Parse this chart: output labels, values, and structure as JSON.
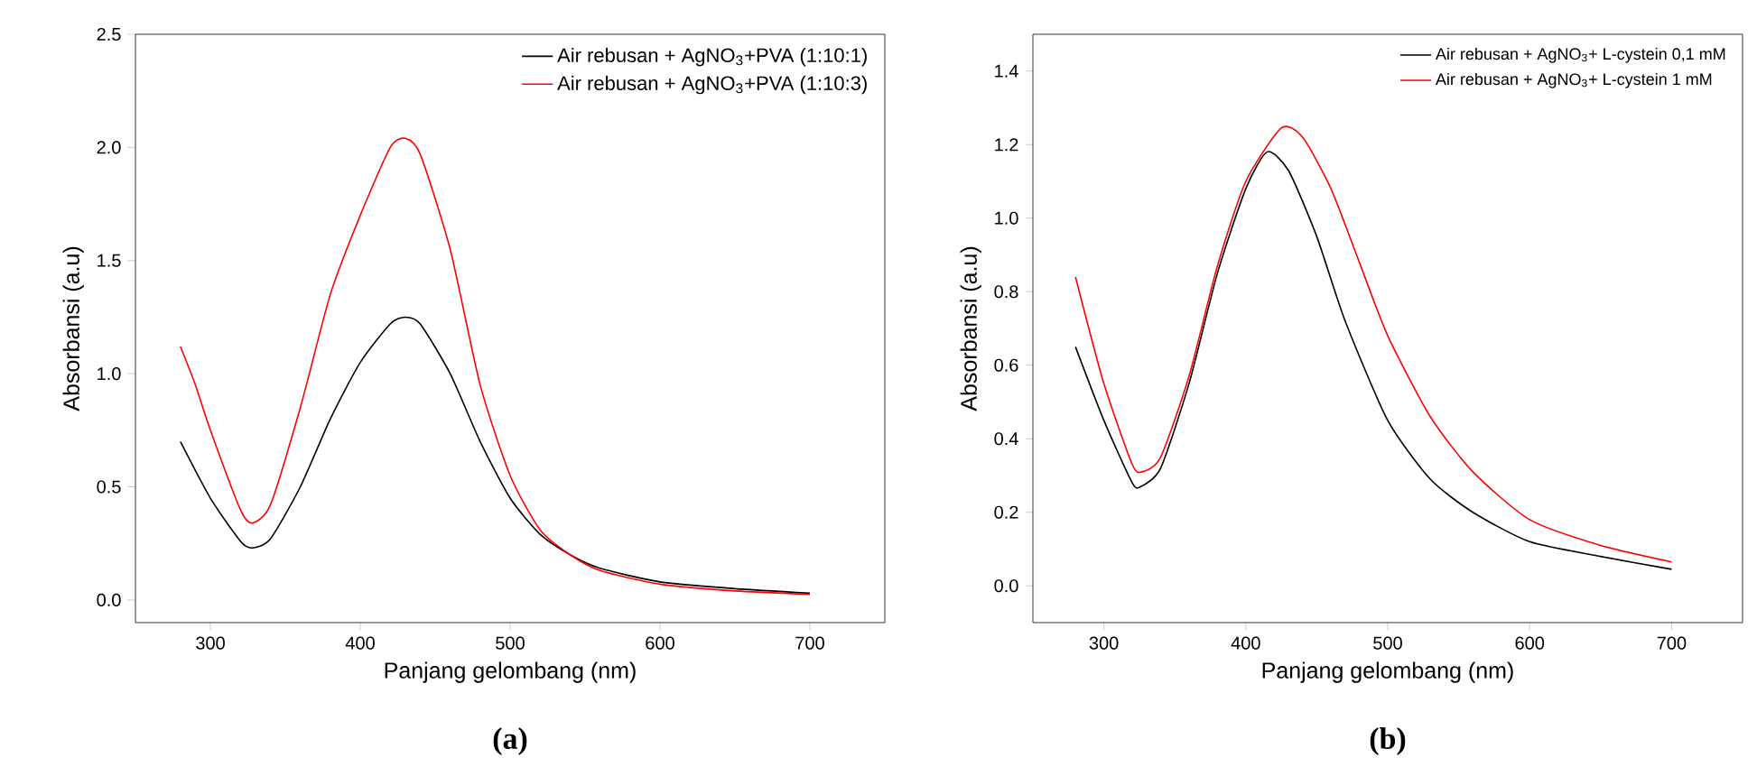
{
  "chart_data": [
    {
      "type": "line",
      "xlabel": "Panjang gelombang (nm)",
      "ylabel": "Absorbansi (a.u)",
      "annotations": [
        "(a)"
      ],
      "legend": "top right",
      "xlim": [
        250,
        750
      ],
      "xticks": [
        300,
        400,
        500,
        600,
        700
      ],
      "ylim": [
        -0.1,
        2.5
      ],
      "yticks": [
        {
          "value": 0,
          "label": "0.0"
        },
        0.5,
        {
          "value": 1,
          "label": "1.0"
        },
        1.5,
        {
          "value": 2,
          "label": "2.0"
        },
        2.5
      ],
      "series": [
        {
          "name": "Air rebusan + AgNO$_{3}$+PVA (1:10:1)",
          "color": "#000000",
          "x": [
            280,
            300,
            320,
            328,
            340,
            360,
            380,
            400,
            420,
            430,
            440,
            460,
            480,
            500,
            520,
            540,
            560,
            600,
            650,
            700
          ],
          "values": [
            0.7,
            0.45,
            0.26,
            0.23,
            0.27,
            0.5,
            0.8,
            1.05,
            1.22,
            1.25,
            1.22,
            1.0,
            0.7,
            0.45,
            0.29,
            0.2,
            0.14,
            0.08,
            0.05,
            0.03
          ]
        },
        {
          "name": "Air rebusan + AgNO$_{3}$+PVA (1:10:3)",
          "color": "#ff0000",
          "x": [
            280,
            290,
            300,
            320,
            328,
            340,
            360,
            380,
            400,
            420,
            430,
            440,
            460,
            480,
            500,
            520,
            540,
            560,
            600,
            650,
            700
          ],
          "values": [
            1.12,
            0.95,
            0.75,
            0.4,
            0.34,
            0.42,
            0.85,
            1.35,
            1.7,
            2.0,
            2.04,
            1.97,
            1.55,
            0.95,
            0.55,
            0.31,
            0.2,
            0.13,
            0.07,
            0.04,
            0.025
          ]
        }
      ]
    },
    {
      "type": "line",
      "xlabel": "Panjang gelombang (nm)",
      "ylabel": "Absorbansi (a.u)",
      "annotations": [
        "(b)"
      ],
      "legend": "top right",
      "xlim": [
        250,
        750
      ],
      "xticks": [
        300,
        400,
        500,
        600,
        700
      ],
      "ylim": [
        -0.1,
        1.5
      ],
      "yticks": [
        {
          "value": 0,
          "label": "0.0"
        },
        0.2,
        0.4,
        0.6,
        0.8,
        {
          "value": 1,
          "label": "1.0"
        },
        1.2,
        1.4
      ],
      "series": [
        {
          "name": "Air rebusan + AgNO$_{3}$+ L-cystein 0,1 mM",
          "color": "#000000",
          "x": [
            280,
            300,
            320,
            326,
            340,
            360,
            380,
            400,
            415,
            430,
            450,
            470,
            500,
            530,
            560,
            600,
            650,
            700
          ],
          "values": [
            0.65,
            0.45,
            0.28,
            0.27,
            0.32,
            0.55,
            0.85,
            1.08,
            1.18,
            1.13,
            0.95,
            0.72,
            0.45,
            0.29,
            0.2,
            0.12,
            0.08,
            0.045
          ]
        },
        {
          "name": "Air rebusan + AgNO$_{3}$+ L-cystein 1 mM",
          "color": "#ff0000",
          "x": [
            280,
            300,
            320,
            327,
            340,
            360,
            380,
            400,
            425,
            440,
            460,
            480,
            500,
            530,
            560,
            600,
            650,
            700
          ],
          "values": [
            0.84,
            0.55,
            0.33,
            0.31,
            0.35,
            0.57,
            0.87,
            1.1,
            1.245,
            1.22,
            1.08,
            0.88,
            0.68,
            0.46,
            0.31,
            0.18,
            0.11,
            0.065
          ]
        }
      ]
    }
  ]
}
